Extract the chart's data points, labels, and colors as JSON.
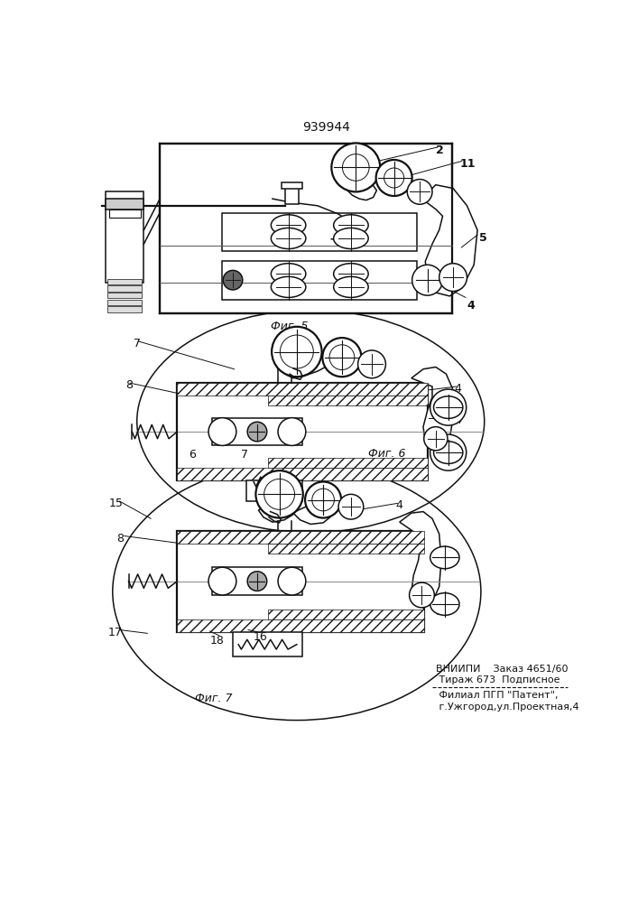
{
  "title": "939944",
  "bg_color": "#ffffff",
  "line_color": "#111111",
  "fig_label_5": "Фиг. 5",
  "fig_label_6": "Фиг. 6",
  "fig_label_7": "Фиг. 7",
  "vnipi_line1": "ВНИИПИ    Заказ 4651/60",
  "vnipi_line2": " Тираж 673  Подписное",
  "vnipi_line3": " Филиал ПГП \"Патент\",",
  "vnipi_line4": " г.Ужгород,ул.Проектная,4"
}
